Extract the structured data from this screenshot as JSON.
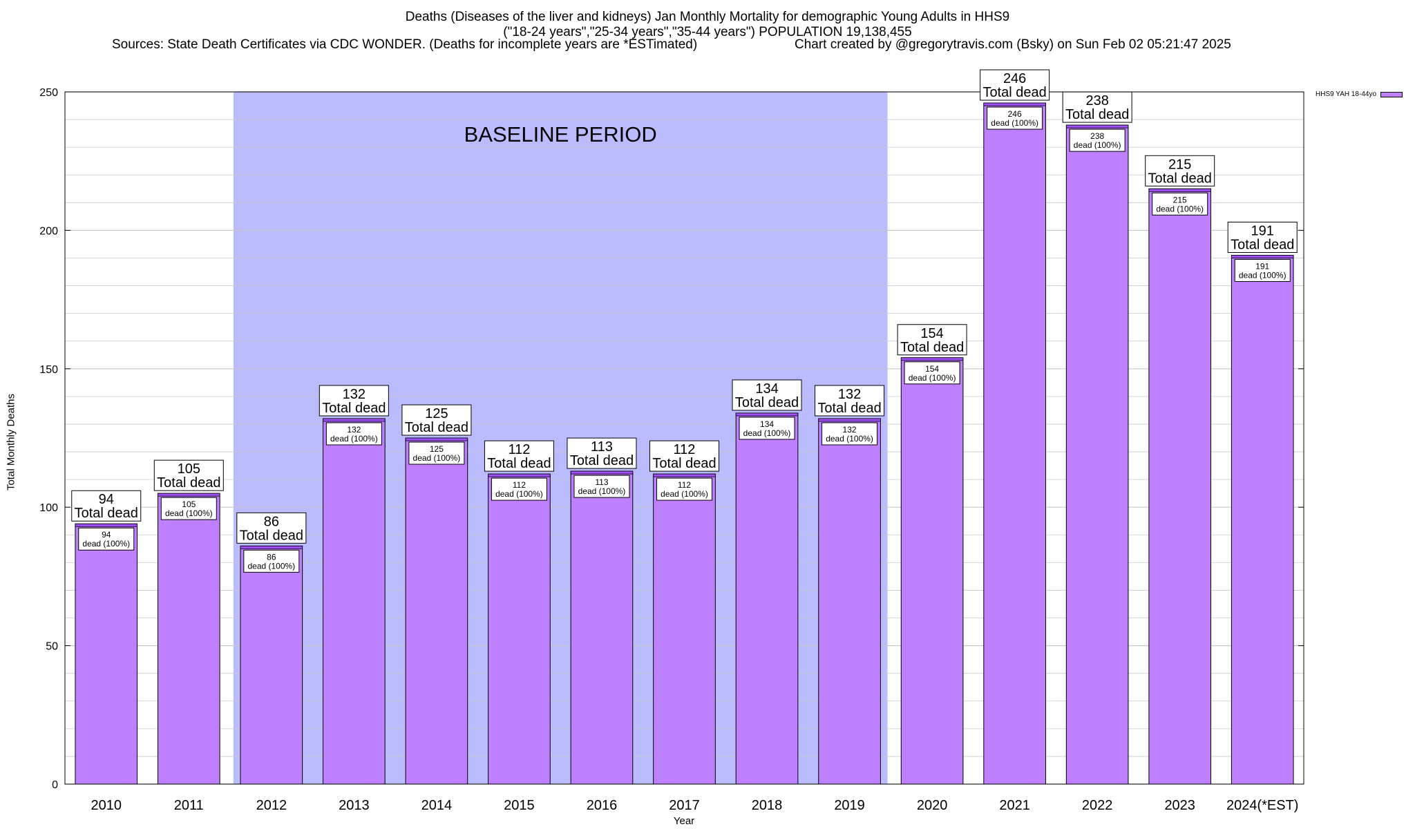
{
  "header": {
    "title_line1": "Deaths (Diseases of the liver and kidneys) Jan Monthly Mortality for demographic Young Adults in HHS9",
    "title_line2": "(\"18-24 years\",\"25-34 years\",\"35-44 years\") POPULATION 19,138,455",
    "sources": "Sources: State Death Certificates via CDC WONDER. (Deaths for incomplete years are *ESTimated)",
    "credit": "Chart created by @gregorytravis.com (Bsky) on Sun Feb 02 05:21:47 2025"
  },
  "chart_data": {
    "type": "bar",
    "xlabel": "Year",
    "ylabel": "Total Monthly Deaths",
    "ylim": [
      0,
      250
    ],
    "yticks": [
      0,
      50,
      100,
      150,
      200,
      250
    ],
    "grid": true,
    "categories": [
      "2010",
      "2011",
      "2012",
      "2013",
      "2014",
      "2015",
      "2016",
      "2017",
      "2018",
      "2019",
      "2020",
      "2021",
      "2022",
      "2023",
      "2024(*EST)"
    ],
    "series": [
      {
        "name": "HHS9 YAH 18-44yo",
        "values": [
          94,
          105,
          86,
          132,
          125,
          112,
          113,
          112,
          134,
          132,
          154,
          246,
          238,
          215,
          191
        ]
      }
    ],
    "total_label_suffix": "Total dead",
    "inner_label_suffix": "dead (100%)",
    "baseline": {
      "label": "BASELINE PERIOD",
      "start": "2012",
      "end": "2019",
      "color": "#bbbbff"
    },
    "colors": {
      "bar_fill": "#bf80ff",
      "bar_top": "#a050ff",
      "background": "#ffffff",
      "grid": "#c8c8c8"
    },
    "legend": {
      "label": "HHS9 YAH 18-44yo",
      "placement": "top-right"
    }
  }
}
